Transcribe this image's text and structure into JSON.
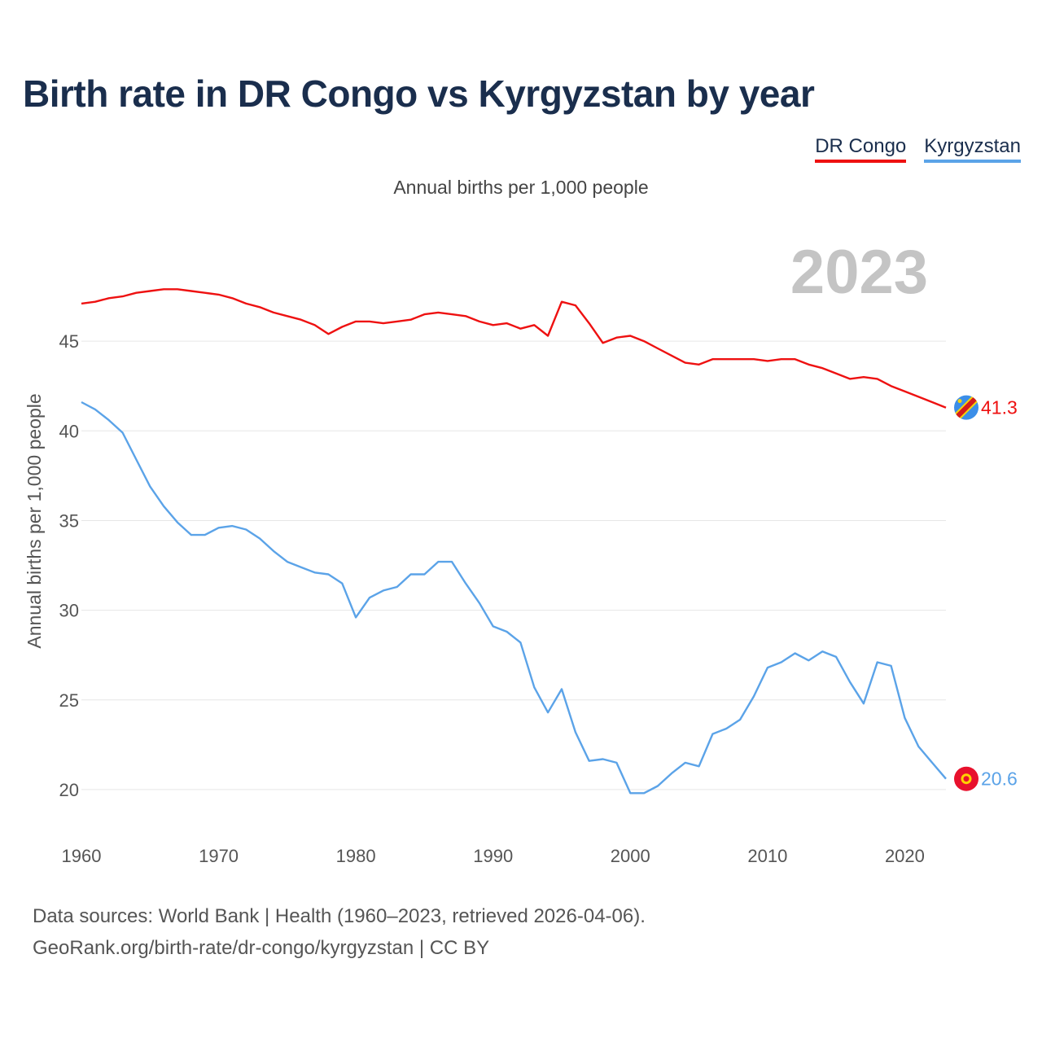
{
  "title": "Birth rate in DR Congo vs Kyrgyzstan by year",
  "subtitle": "Annual births per 1,000 people",
  "legend": [
    {
      "name": "DR Congo",
      "color": "#ee1111"
    },
    {
      "name": "Kyrgyzstan",
      "color": "#5ba3e8"
    }
  ],
  "footer": {
    "line1": "Data sources: World Bank | Health (1960–2023, retrieved 2026-04-06).",
    "line2": "GeoRank.org/birth-rate/dr-congo/kyrgyzstan | CC BY"
  },
  "chart_data": {
    "type": "line",
    "title": "Birth rate in DR Congo vs Kyrgyzstan by year",
    "ylabel": "Annual births per 1,000 people",
    "xlabel": "",
    "year_label": "2023",
    "x_range": [
      1960,
      2023
    ],
    "ylim": [
      17.5,
      49.5
    ],
    "y_ticks": [
      20,
      25,
      30,
      35,
      40,
      45
    ],
    "x_ticks": [
      1960,
      1970,
      1980,
      1990,
      2000,
      2010,
      2020
    ],
    "grid": true,
    "series": [
      {
        "name": "DR Congo",
        "color": "#ee1111",
        "end_label": "41.3",
        "flag_icon": "dr-congo-flag-icon",
        "start_year": 1960,
        "values": [
          47.1,
          47.2,
          47.4,
          47.5,
          47.7,
          47.8,
          47.9,
          47.9,
          47.8,
          47.7,
          47.6,
          47.4,
          47.1,
          46.9,
          46.6,
          46.4,
          46.2,
          45.9,
          45.4,
          45.8,
          46.1,
          46.1,
          46.0,
          46.1,
          46.2,
          46.5,
          46.6,
          46.5,
          46.4,
          46.1,
          45.9,
          46.0,
          45.7,
          45.9,
          45.3,
          47.2,
          47.0,
          46.0,
          44.9,
          45.2,
          45.3,
          45.0,
          44.6,
          44.2,
          43.8,
          43.7,
          44.0,
          44.0,
          44.0,
          44.0,
          43.9,
          44.0,
          44.0,
          43.7,
          43.5,
          43.2,
          42.9,
          43.0,
          42.9,
          42.5,
          42.2,
          41.9,
          41.6,
          41.3
        ]
      },
      {
        "name": "Kyrgyzstan",
        "color": "#5ba3e8",
        "end_label": "20.6",
        "flag_icon": "kyrgyzstan-flag-icon",
        "start_year": 1960,
        "values": [
          41.6,
          41.2,
          40.6,
          39.9,
          38.4,
          36.9,
          35.8,
          34.9,
          34.2,
          34.2,
          34.6,
          34.7,
          34.5,
          34.0,
          33.3,
          32.7,
          32.4,
          32.1,
          32.0,
          31.5,
          29.6,
          30.7,
          31.1,
          31.3,
          32.0,
          32.0,
          32.7,
          32.7,
          31.5,
          30.4,
          29.1,
          28.8,
          28.2,
          25.7,
          24.3,
          25.6,
          23.2,
          21.6,
          21.7,
          21.5,
          19.8,
          19.8,
          20.2,
          20.9,
          21.5,
          21.3,
          23.1,
          23.4,
          23.9,
          25.2,
          26.8,
          27.1,
          27.6,
          27.2,
          27.7,
          27.4,
          26.0,
          24.8,
          27.1,
          26.9,
          24.0,
          22.4,
          21.5,
          20.6
        ]
      }
    ]
  }
}
